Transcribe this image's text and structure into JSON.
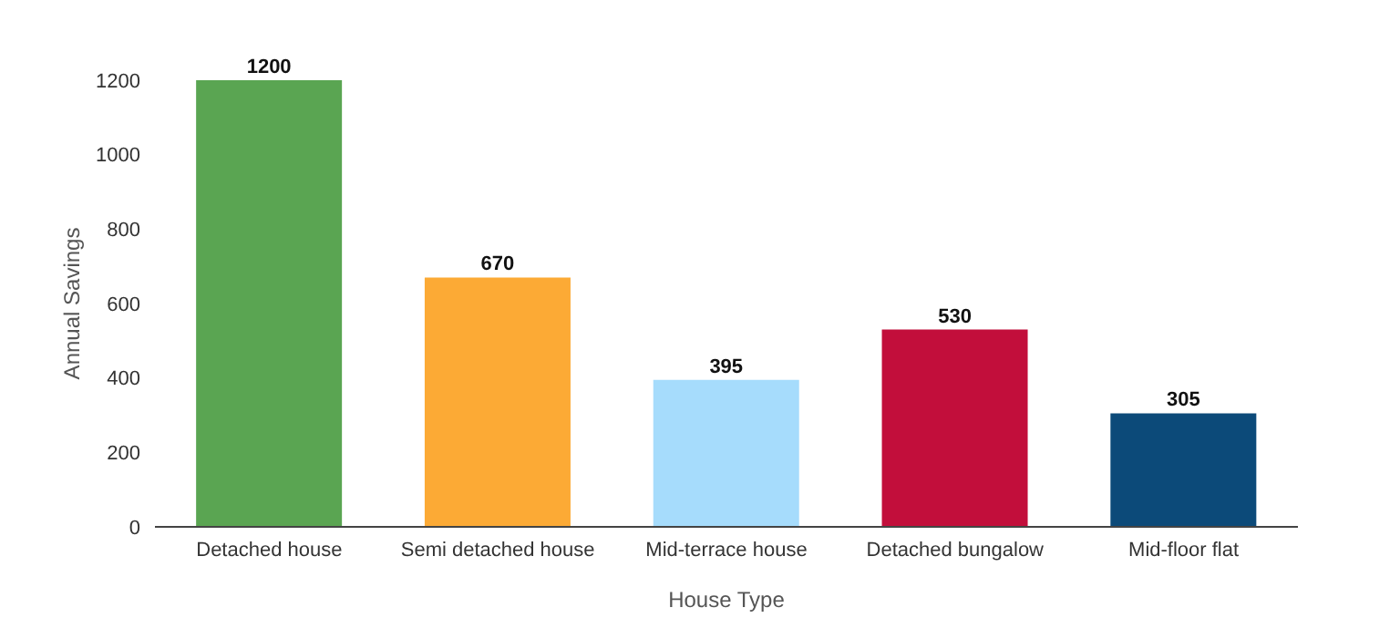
{
  "chart_data": {
    "type": "bar",
    "xlabel": "House Type",
    "ylabel": "Annual Savings",
    "categories": [
      "Detached house",
      "Semi detached house",
      "Mid-terrace house",
      "Detached bungalow",
      "Mid-floor flat"
    ],
    "values": [
      1200,
      670,
      395,
      530,
      305
    ],
    "colors": [
      "#5aa552",
      "#fcaa35",
      "#a6dcfc",
      "#c20e3b",
      "#0c4a79"
    ],
    "ylim": [
      0,
      1200
    ],
    "yticks": [
      0,
      200,
      400,
      600,
      800,
      1000,
      1200
    ],
    "grid": false,
    "legend": false,
    "data_labels": true
  }
}
